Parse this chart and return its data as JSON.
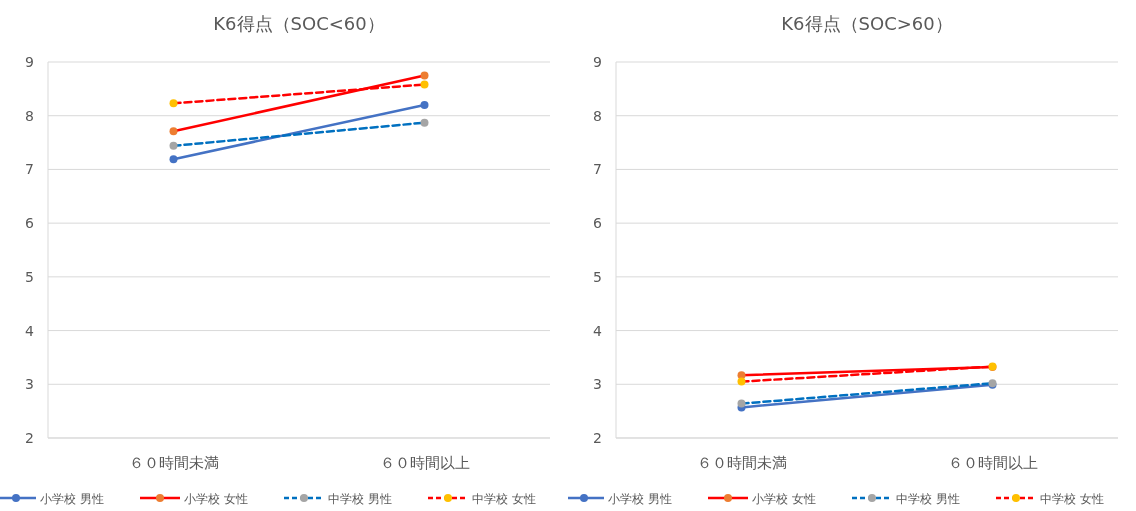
{
  "chart_data": [
    {
      "type": "line",
      "title": "K6得点（SOC<60）",
      "categories": [
        "６０時間未満",
        "６０時間以上"
      ],
      "ylim": [
        2,
        9
      ],
      "yticks": [
        2,
        3,
        4,
        5,
        6,
        7,
        8,
        9
      ],
      "grid": "y",
      "legend": "bottom",
      "marker": "circle",
      "series": [
        {
          "name": "小学校 男性",
          "color": "#4472c4",
          "colors": [
            "#4472c4",
            "#4472c4"
          ],
          "line_style": "solid",
          "values": [
            7.19,
            8.2
          ]
        },
        {
          "name": "小学校 女性",
          "color": "#ff0000",
          "colors": [
            "#ed7d31",
            "#ed7d31"
          ],
          "line_style": "solid",
          "values": [
            7.71,
            8.75
          ]
        },
        {
          "name": "中学校 男性",
          "color": "#0070c0",
          "colors": [
            "#a5a5a5",
            "#a5a5a5"
          ],
          "line_style": "dashed",
          "values": [
            7.44,
            7.87
          ]
        },
        {
          "name": "中学校 女性",
          "color": "#ff0000",
          "colors": [
            "#ffc000",
            "#ffc000"
          ],
          "line_style": "dashed",
          "values": [
            8.23,
            8.58
          ]
        }
      ]
    },
    {
      "type": "line",
      "title": "K6得点（SOC>60）",
      "categories": [
        "６０時間未満",
        "６０時間以上"
      ],
      "ylim": [
        2,
        9
      ],
      "yticks": [
        2,
        3,
        4,
        5,
        6,
        7,
        8,
        9
      ],
      "grid": "y",
      "legend": "bottom",
      "marker": "circle",
      "series": [
        {
          "name": "小学校 男性",
          "color": "#4472c4",
          "colors": [
            "#4472c4",
            "#4472c4"
          ],
          "line_style": "solid",
          "values": [
            2.57,
            2.99
          ]
        },
        {
          "name": "小学校 女性",
          "color": "#ff0000",
          "colors": [
            "#ed7d31",
            "#ed7d31"
          ],
          "line_style": "solid",
          "values": [
            3.17,
            3.32
          ]
        },
        {
          "name": "中学校 男性",
          "color": "#0070c0",
          "colors": [
            "#a5a5a5",
            "#a5a5a5"
          ],
          "line_style": "dashed",
          "values": [
            2.64,
            3.02
          ]
        },
        {
          "name": "中学校 女性",
          "color": "#ff0000",
          "colors": [
            "#ffc000",
            "#ffc000"
          ],
          "line_style": "dashed",
          "values": [
            3.05,
            3.33
          ]
        }
      ]
    }
  ]
}
